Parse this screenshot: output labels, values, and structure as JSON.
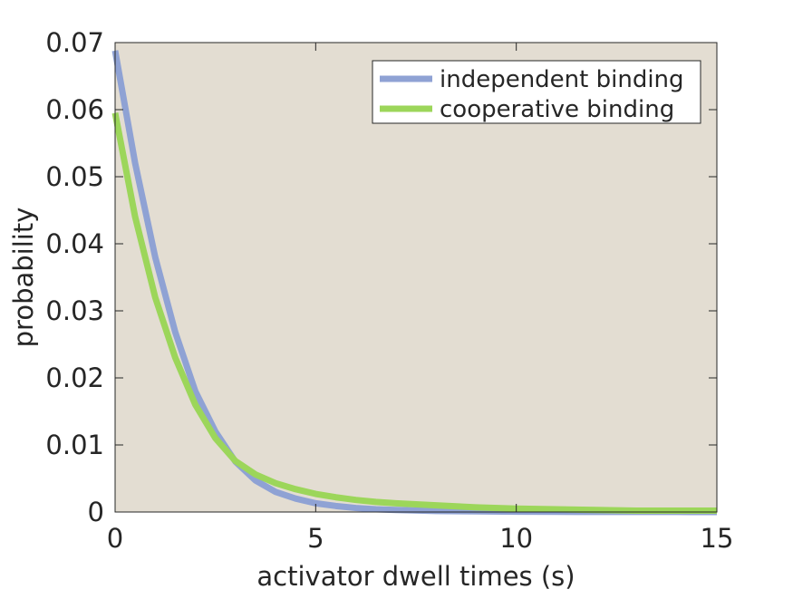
{
  "chart_data": {
    "type": "line",
    "title": "",
    "xlabel": "activator dwell times (s)",
    "ylabel": "probability",
    "xlim": [
      0,
      15
    ],
    "ylim": [
      0,
      0.07
    ],
    "xticks": [
      0,
      5,
      10,
      15
    ],
    "xtick_labels": [
      "0",
      "5",
      "10",
      "15"
    ],
    "yticks": [
      0,
      0.01,
      0.02,
      0.03,
      0.04,
      0.05,
      0.06,
      0.07
    ],
    "ytick_labels": [
      "0",
      "0.01",
      "0.02",
      "0.03",
      "0.04",
      "0.05",
      "0.06",
      "0.07"
    ],
    "grid": false,
    "legend_position": "top-right",
    "plot_background": "#e3ddd2",
    "series": [
      {
        "name": "independent binding",
        "color": "#8fa2d4",
        "x": [
          0,
          0.5,
          1,
          1.5,
          2,
          2.5,
          3,
          3.5,
          4,
          4.5,
          5,
          5.5,
          6,
          6.5,
          7,
          8,
          9,
          10,
          11,
          12,
          13,
          14,
          15
        ],
        "y": [
          0.0688,
          0.052,
          0.038,
          0.0268,
          0.018,
          0.012,
          0.0075,
          0.0047,
          0.003,
          0.002,
          0.0013,
          0.0009,
          0.0006,
          0.0004,
          0.0003,
          0.00015,
          0.0001,
          5e-05,
          3e-05,
          2e-05,
          1e-05,
          1e-05,
          0.0
        ]
      },
      {
        "name": "cooperative binding",
        "color": "#9cd65a",
        "x": [
          0,
          0.5,
          1,
          1.5,
          2,
          2.5,
          3,
          3.5,
          4,
          4.5,
          5,
          5.5,
          6,
          6.5,
          7,
          8,
          9,
          10,
          11,
          12,
          13,
          14,
          15
        ],
        "y": [
          0.0595,
          0.044,
          0.032,
          0.023,
          0.016,
          0.011,
          0.0076,
          0.0056,
          0.0043,
          0.0034,
          0.0027,
          0.0022,
          0.0018,
          0.0015,
          0.0013,
          0.001,
          0.0007,
          0.0005,
          0.0004,
          0.0003,
          0.0002,
          0.0002,
          0.0002
        ]
      }
    ]
  }
}
